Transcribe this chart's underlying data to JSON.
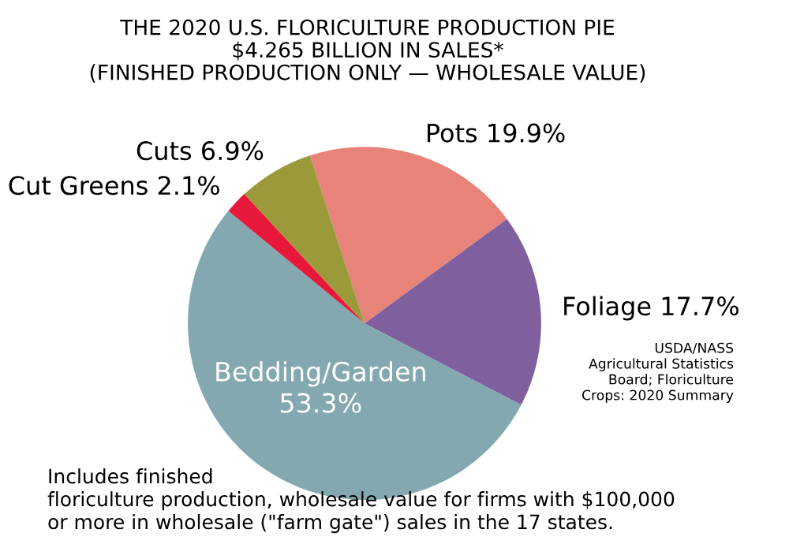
{
  "chart_data": {
    "type": "pie",
    "title": "THE 2020 U.S. FLORICULTURE PRODUCTION PIE",
    "subtitle": "$4.265 BILLION IN SALES*\n(FINISHED PRODUCTION ONLY — WHOLESALE VALUE)",
    "categories": [
      "Pots",
      "Foliage",
      "Bedding/Garden",
      "Cut Greens",
      "Cuts"
    ],
    "values": [
      19.9,
      17.7,
      53.3,
      2.1,
      6.9
    ],
    "value_labels": [
      "19.9%",
      "17.7%",
      "53.3%",
      "2.1%",
      "6.9%"
    ],
    "colors": [
      "#e8837a",
      "#7f5f9e",
      "#84a8b0",
      "#e8183a",
      "#9b9a3a"
    ],
    "annotations": [
      "USDA/NASS\nAgricultural Statistics\nBoard; Floriculture\nCrops: 2020 Summary",
      "Includes finished\nfloriculture production, wholesale value for firms with $100,000\nor more in wholesale (\"farm gate\") sales in the 17 states."
    ]
  }
}
